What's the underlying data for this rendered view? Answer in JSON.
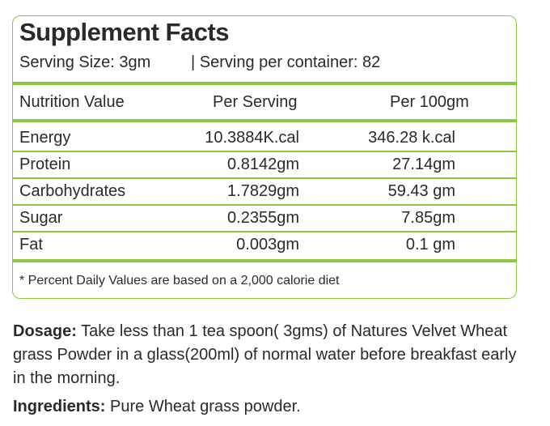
{
  "title": "Supplement Facts",
  "serving_size": "Serving Size: 3gm",
  "serving_per_container": "|   Serving per container: 82",
  "table": {
    "headers": [
      "Nutrition Value",
      "Per Serving",
      "Per 100gm"
    ],
    "rows": [
      [
        "Energy",
        "10.3884K.cal",
        "346.28 k.cal"
      ],
      [
        "Protein",
        "0.8142gm",
        "27.14gm"
      ],
      [
        "Carbohydrates",
        "1.7829gm",
        "59.43 gm"
      ],
      [
        "Sugar",
        "0.2355gm",
        "7.85gm"
      ],
      [
        "Fat",
        "0.003gm",
        "0.1 gm"
      ]
    ]
  },
  "footnote": "* Percent Daily Values are based on a 2,000 calorie diet",
  "dosage": {
    "label": "Dosage:",
    "text": " Take less than 1 tea spoon( 3gms) of Natures Velvet Wheat grass Powder in a glass(200ml) of normal water before breakfast early in the morning."
  },
  "ingredients": {
    "label": "Ingredients:",
    "text": " Pure Wheat grass powder."
  },
  "colors": {
    "accent": "#8cc63f",
    "text": "#2a2a2a"
  }
}
